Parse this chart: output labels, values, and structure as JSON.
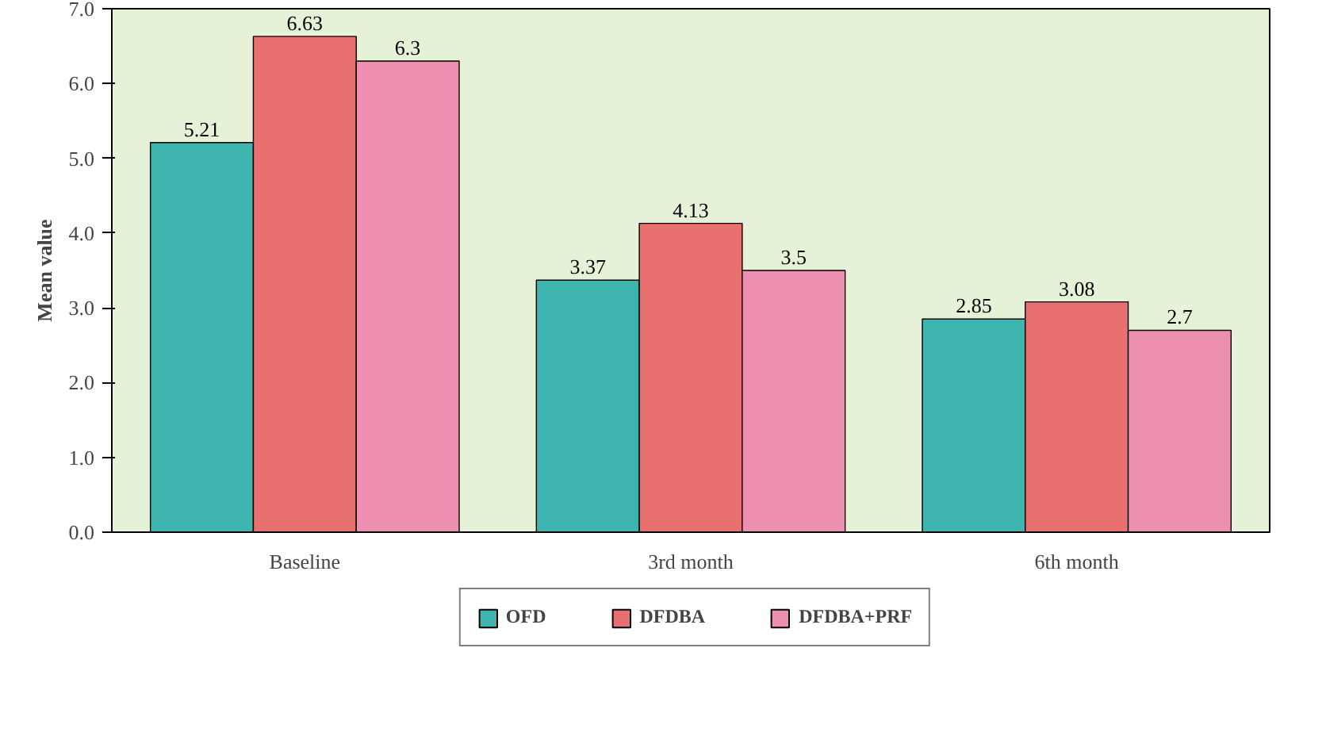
{
  "chart_data": {
    "type": "bar",
    "ylabel": "Mean value",
    "categories": [
      "Baseline",
      "3rd month",
      "6th month"
    ],
    "series": [
      {
        "name": "OFD",
        "color": "#3fb5b0",
        "values": [
          5.21,
          3.37,
          2.85
        ]
      },
      {
        "name": "DFDBA",
        "color": "#e8706e",
        "values": [
          6.63,
          4.13,
          3.08
        ]
      },
      {
        "name": "DFDBA+PRF",
        "color": "#ec8fb0",
        "values": [
          6.3,
          3.5,
          2.7
        ]
      }
    ],
    "ylim": [
      0,
      7
    ],
    "yticks": [
      {
        "value": 0,
        "label": "0.0"
      },
      {
        "value": 1,
        "label": "1.0"
      },
      {
        "value": 2,
        "label": "2.0"
      },
      {
        "value": 3,
        "label": "3.0"
      },
      {
        "value": 4,
        "label": "4.0"
      },
      {
        "value": 5,
        "label": "5.0"
      },
      {
        "value": 6,
        "label": "6.0"
      },
      {
        "value": 7,
        "label": "7.0"
      }
    ],
    "data_labels": true,
    "legend": "bottom",
    "grid": false
  }
}
